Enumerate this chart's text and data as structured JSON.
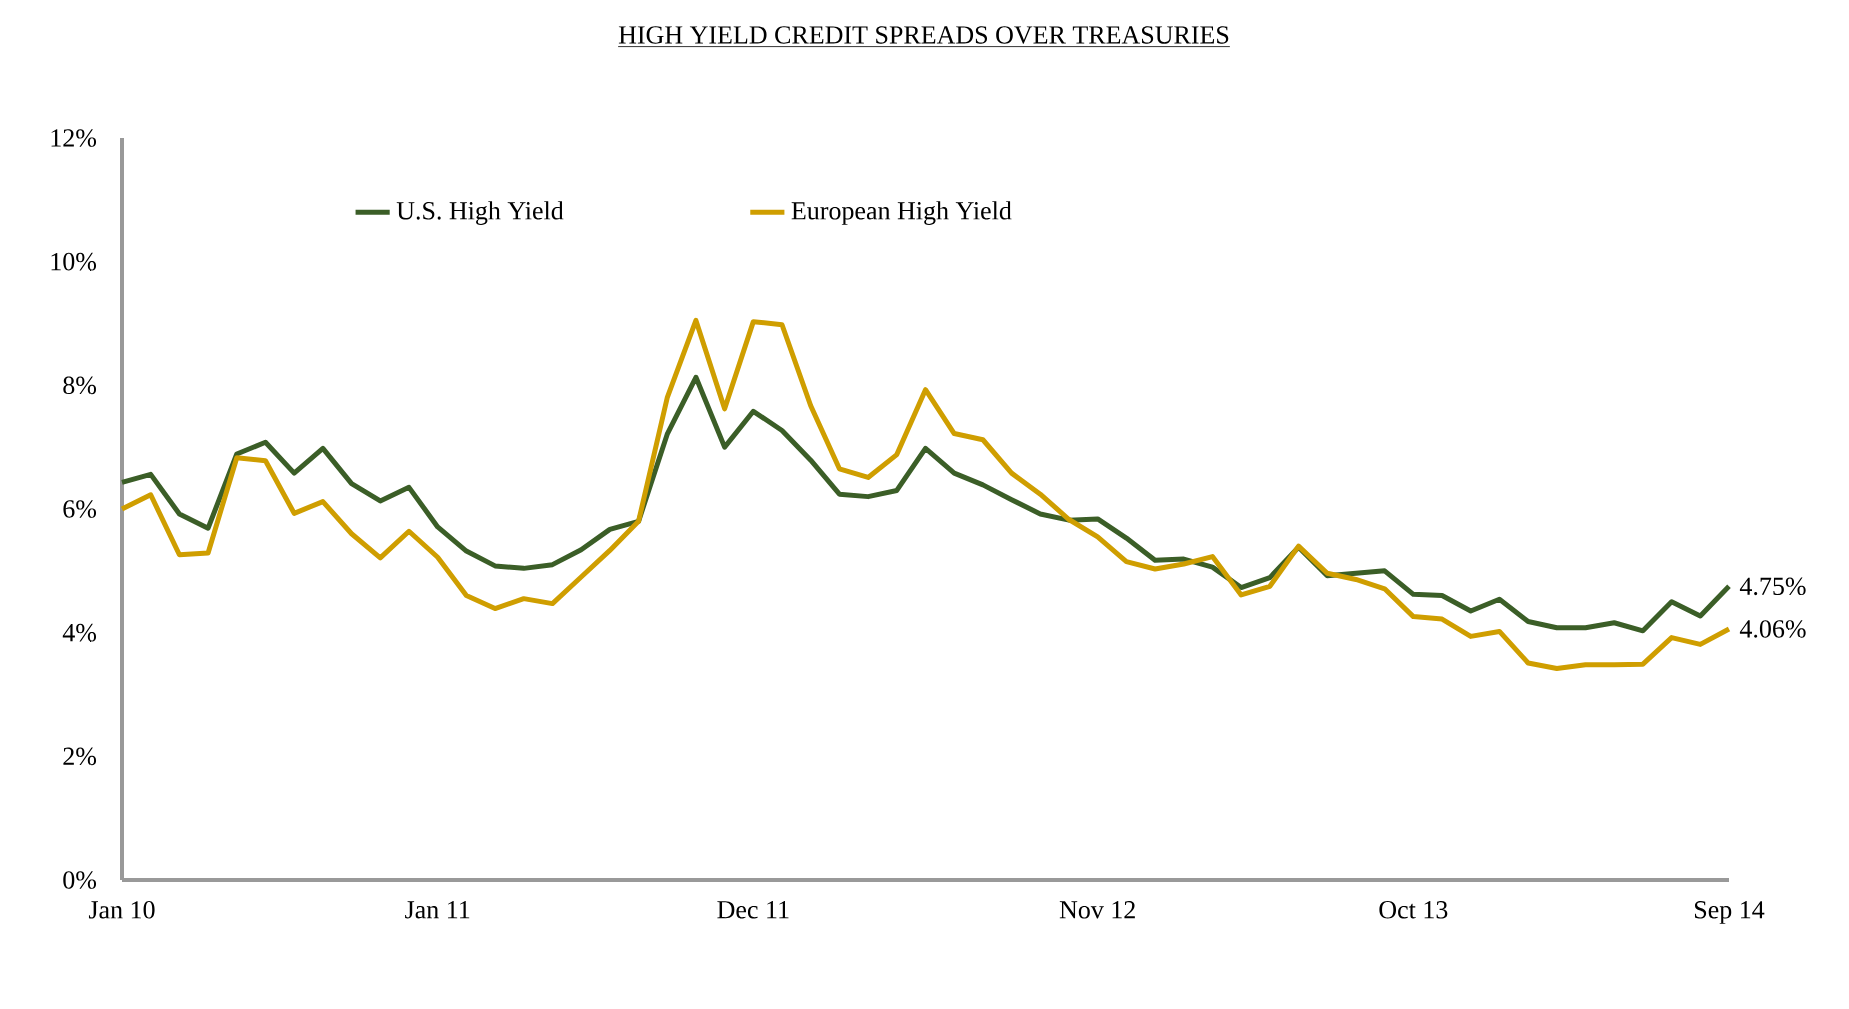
{
  "chart_data": {
    "type": "line",
    "title": "HIGH YIELD CREDIT SPREADS OVER TREASURIES",
    "categories": [
      "Jan 10",
      null,
      null,
      null,
      null,
      null,
      null,
      null,
      null,
      null,
      null,
      "Jan 11",
      null,
      null,
      null,
      null,
      null,
      null,
      null,
      null,
      null,
      null,
      "Dec 11",
      null,
      null,
      null,
      null,
      null,
      null,
      null,
      null,
      null,
      null,
      null,
      "Nov 12",
      null,
      null,
      null,
      null,
      null,
      null,
      null,
      null,
      null,
      null,
      "Oct 13",
      null,
      null,
      null,
      null,
      null,
      null,
      null,
      null,
      null,
      null,
      "Sep 14"
    ],
    "series": [
      {
        "name": "U.S. High Yield",
        "color": "#3b5e27",
        "values": [
          6.43,
          6.56,
          5.92,
          5.69,
          6.89,
          7.08,
          6.58,
          6.98,
          6.41,
          6.13,
          6.35,
          5.71,
          5.32,
          5.08,
          5.04,
          5.1,
          5.34,
          5.67,
          5.8,
          7.21,
          8.13,
          7.0,
          7.58,
          7.27,
          6.79,
          6.24,
          6.2,
          6.3,
          6.98,
          6.58,
          6.39,
          6.15,
          5.92,
          5.82,
          5.84,
          5.53,
          5.17,
          5.19,
          5.06,
          4.73,
          4.89,
          5.38,
          4.92,
          4.96,
          5.0,
          4.62,
          4.6,
          4.35,
          4.54,
          4.18,
          4.08,
          4.08,
          4.16,
          4.03,
          4.5,
          4.27,
          4.75
        ],
        "value_labels": [
          null,
          null,
          null,
          null,
          null,
          null,
          null,
          null,
          null,
          null,
          null,
          null,
          null,
          null,
          null,
          null,
          null,
          null,
          null,
          null,
          null,
          null,
          null,
          null,
          null,
          null,
          null,
          null,
          null,
          null,
          null,
          null,
          null,
          null,
          null,
          null,
          null,
          null,
          null,
          null,
          null,
          null,
          null,
          null,
          null,
          null,
          null,
          null,
          null,
          null,
          null,
          null,
          null,
          null,
          null,
          null,
          "4.75%"
        ]
      },
      {
        "name": "European High Yield",
        "color": "#cf9e00",
        "values": [
          6.0,
          6.23,
          5.26,
          5.29,
          6.83,
          6.78,
          5.93,
          6.12,
          5.6,
          5.21,
          5.64,
          5.22,
          4.6,
          4.39,
          4.55,
          4.47,
          4.9,
          5.33,
          5.8,
          7.8,
          9.05,
          7.62,
          9.03,
          8.98,
          7.67,
          6.65,
          6.51,
          6.88,
          7.93,
          7.22,
          7.12,
          6.58,
          6.24,
          5.83,
          5.55,
          5.15,
          5.03,
          5.11,
          5.23,
          4.61,
          4.75,
          5.4,
          4.96,
          4.86,
          4.71,
          4.26,
          4.22,
          3.94,
          4.02,
          3.51,
          3.42,
          3.48,
          3.48,
          3.49,
          3.92,
          3.81,
          4.06
        ],
        "value_labels": [
          null,
          null,
          null,
          null,
          null,
          null,
          null,
          null,
          null,
          null,
          null,
          null,
          null,
          null,
          null,
          null,
          null,
          null,
          null,
          null,
          null,
          null,
          null,
          null,
          null,
          null,
          null,
          null,
          null,
          null,
          null,
          null,
          null,
          null,
          null,
          null,
          null,
          null,
          null,
          null,
          null,
          null,
          null,
          null,
          null,
          null,
          null,
          null,
          null,
          null,
          null,
          null,
          null,
          null,
          null,
          null,
          "4.06%"
        ]
      }
    ],
    "ylim": [
      0,
      12
    ],
    "yticks": [
      {
        "value": 0,
        "label": "0%"
      },
      {
        "value": 2,
        "label": "2%"
      },
      {
        "value": 4,
        "label": "4%"
      },
      {
        "value": 6,
        "label": "6%"
      },
      {
        "value": 8,
        "label": "8%"
      },
      {
        "value": 10,
        "label": "10%"
      },
      {
        "value": 12,
        "label": "12%"
      }
    ],
    "legend": "top",
    "marker": "none",
    "line_style": "solid"
  }
}
